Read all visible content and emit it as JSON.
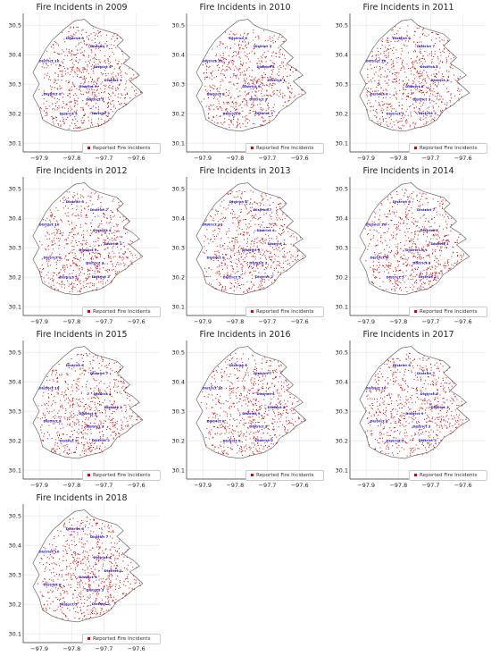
{
  "panels": [
    {
      "year": 2009,
      "title": "Fire Incidents in 2009"
    },
    {
      "year": 2010,
      "title": "Fire Incidents in 2010"
    },
    {
      "year": 2011,
      "title": "Fire Incidents in 2011"
    },
    {
      "year": 2012,
      "title": "Fire Incidents in 2012"
    },
    {
      "year": 2013,
      "title": "Fire Incidents in 2013"
    },
    {
      "year": 2014,
      "title": "Fire Incidents in 2014"
    },
    {
      "year": 2015,
      "title": "Fire Incidents in 2015"
    },
    {
      "year": 2016,
      "title": "Fire Incidents in 2016"
    },
    {
      "year": 2017,
      "title": "Fire Incidents in 2017"
    },
    {
      "year": 2018,
      "title": "Fire Incidents in 2018"
    }
  ],
  "legend_label": "Reported Fire Incidents",
  "x_ticks": [
    "−97.9",
    "−97.8",
    "−97.7",
    "−97.6"
  ],
  "y_ticks": [
    "30.1",
    "30.2",
    "30.3",
    "30.4",
    "30.5"
  ],
  "x_range": [
    -97.95,
    -97.53
  ],
  "y_range": [
    30.07,
    30.54
  ],
  "districts": [
    {
      "name": "District 6",
      "lon": -97.79,
      "lat": 30.452
    },
    {
      "name": "District 7",
      "lon": -97.715,
      "lat": 30.425
    },
    {
      "name": "District 10",
      "lon": -97.87,
      "lat": 30.375
    },
    {
      "name": "District 4",
      "lon": -97.705,
      "lat": 30.355
    },
    {
      "name": "District 1",
      "lon": -97.672,
      "lat": 30.31
    },
    {
      "name": "District 9",
      "lon": -97.75,
      "lat": 30.288
    },
    {
      "name": "District 8",
      "lon": -97.86,
      "lat": 30.262
    },
    {
      "name": "District 3",
      "lon": -97.728,
      "lat": 30.245
    },
    {
      "name": "District 5",
      "lon": -97.81,
      "lat": 30.196
    },
    {
      "name": "District 2",
      "lon": -97.71,
      "lat": 30.198
    }
  ],
  "colors": {
    "incidents": "#e00000",
    "districts": "#1a1acc",
    "boundary": "#555555",
    "grid": "#dddddd"
  }
}
